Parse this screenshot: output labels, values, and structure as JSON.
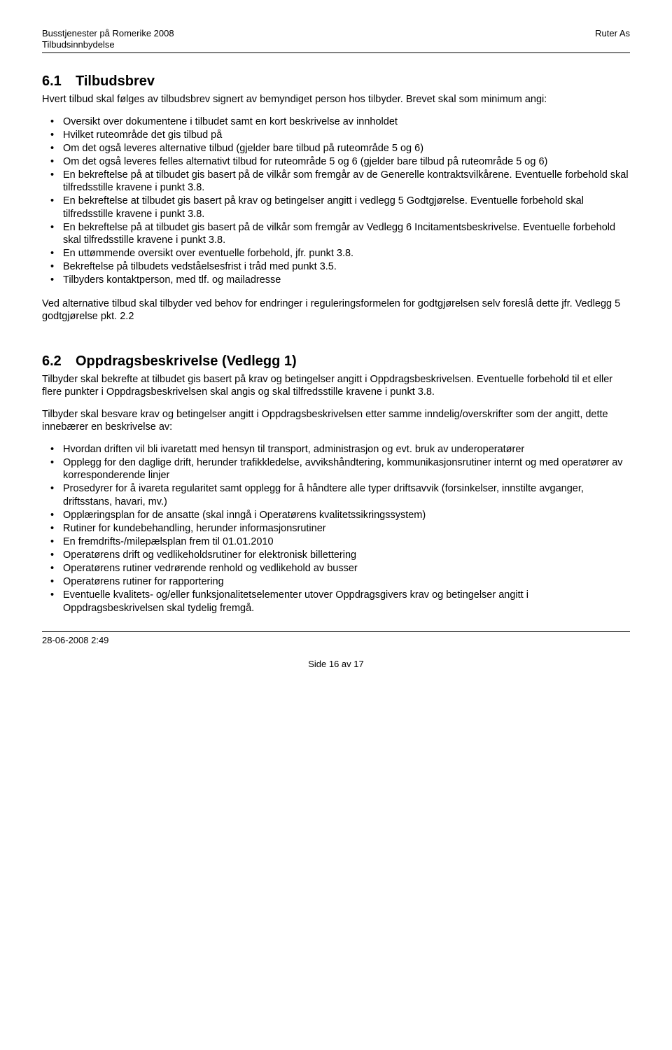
{
  "header": {
    "left_line1": "Busstjenester på Romerike 2008",
    "left_line2": "Tilbudsinnbydelse",
    "right": "Ruter As"
  },
  "section1": {
    "number": "6.1",
    "title": "Tilbudsbrev",
    "lead": "Hvert tilbud skal følges av tilbudsbrev signert av bemyndiget person hos tilbyder. Brevet skal som minimum angi:",
    "bullets": [
      "Oversikt over dokumentene i tilbudet samt en kort beskrivelse av innholdet",
      "Hvilket ruteområde det gis tilbud på",
      "Om det også leveres alternative tilbud (gjelder bare tilbud på ruteområde 5 og 6)",
      "Om det også leveres felles alternativt tilbud for ruteområde 5 og 6 (gjelder bare tilbud på ruteområde 5 og 6)",
      "En bekreftelse på at tilbudet gis basert på de vilkår som fremgår av de Generelle kontraktsvilkårene.  Eventuelle forbehold skal tilfredsstille kravene i punkt 3.8.",
      "En bekreftelse at tilbudet gis basert på krav og betingelser angitt i vedlegg 5 Godtgjørelse. Eventuelle forbehold skal tilfredsstille kravene i punkt 3.8.",
      "En bekreftelse på at tilbudet gis basert på de vilkår som fremgår av Vedlegg 6 Incitamentsbeskrivelse.  Eventuelle forbehold skal tilfredsstille kravene i punkt 3.8.",
      "En uttømmende oversikt over eventuelle forbehold, jfr. punkt 3.8.",
      "Bekreftelse på tilbudets vedståelsesfrist i tråd med punkt 3.5.",
      "Tilbyders kontaktperson, med tlf. og mailadresse"
    ],
    "para2": "Ved alternative tilbud skal tilbyder ved behov for endringer i reguleringsformelen for godtgjørelsen selv foreslå dette jfr. Vedlegg 5 godtgjørelse pkt. 2.2"
  },
  "section2": {
    "number": "6.2",
    "title": "Oppdragsbeskrivelse (Vedlegg 1)",
    "para1": "Tilbyder skal bekrefte at tilbudet gis basert på krav og betingelser angitt i Oppdragsbeskrivelsen. Eventuelle forbehold til et eller flere punkter i Oppdragsbeskrivelsen skal angis og skal tilfredsstille kravene i punkt 3.8.",
    "para2": "Tilbyder skal besvare krav og betingelser angitt i Oppdragsbeskrivelsen etter samme inndelig/overskrifter som der angitt, dette innebærer en beskrivelse av:",
    "bullets": [
      "Hvordan driften vil bli ivaretatt med hensyn til transport, administrasjon og evt. bruk av underoperatører",
      "Opplegg for den daglige drift, herunder trafikkledelse, avvikshåndtering, kommunikasjonsrutiner internt og med operatører av korresponderende linjer",
      "Prosedyrer for å ivareta regularitet samt opplegg for å håndtere alle typer driftsavvik (forsinkelser, innstilte avganger, driftsstans, havari, mv.)",
      "Opplæringsplan for de ansatte (skal inngå i Operatørens kvalitetssikringssystem)",
      "Rutiner for kundebehandling, herunder informasjonsrutiner",
      "En fremdrifts-/milepælsplan frem til 01.01.2010",
      "Operatørens drift og vedlikeholdsrutiner for elektronisk billettering",
      "Operatørens rutiner vedrørende renhold og vedlikehold av busser",
      "Operatørens rutiner for rapportering",
      "Eventuelle kvalitets- og/eller funksjonalitetselementer utover Oppdragsgivers krav og betingelser angitt i Oppdragsbeskrivelsen skal tydelig fremgå."
    ]
  },
  "footer": {
    "timestamp": "28-06-2008  2:49",
    "page": "Side 16 av 17"
  }
}
